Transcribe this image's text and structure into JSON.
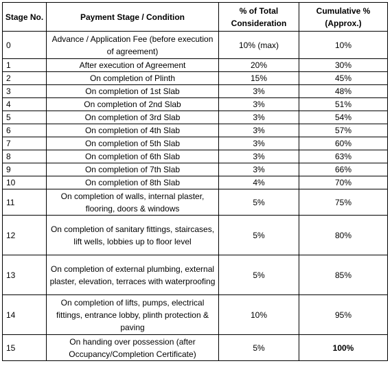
{
  "headers": {
    "stage": "Stage No.",
    "condition": "Payment Stage / Condition",
    "percent": "% of Total Consideration",
    "cumulative": "Cumulative % (Approx.)"
  },
  "rows": [
    {
      "stage": "0",
      "condition": "Advance / Application Fee (before execution of agreement)",
      "percent": "10% (max)",
      "cumulative": "10%"
    },
    {
      "stage": "1",
      "condition": "After execution of Agreement",
      "percent": "20%",
      "cumulative": "30%"
    },
    {
      "stage": "2",
      "condition": "On completion of Plinth",
      "percent": "15%",
      "cumulative": "45%"
    },
    {
      "stage": "3",
      "condition": "On completion of 1st Slab",
      "percent": "3%",
      "cumulative": "48%"
    },
    {
      "stage": "4",
      "condition": "On completion of 2nd Slab",
      "percent": "3%",
      "cumulative": "51%"
    },
    {
      "stage": "5",
      "condition": "On completion of 3rd Slab",
      "percent": "3%",
      "cumulative": "54%"
    },
    {
      "stage": "6",
      "condition": "On completion of 4th Slab",
      "percent": "3%",
      "cumulative": "57%"
    },
    {
      "stage": "7",
      "condition": "On completion of 5th Slab",
      "percent": "3%",
      "cumulative": "60%"
    },
    {
      "stage": "8",
      "condition": "On completion of 6th Slab",
      "percent": "3%",
      "cumulative": "63%"
    },
    {
      "stage": "9",
      "condition": "On completion of 7th Slab",
      "percent": "3%",
      "cumulative": "66%"
    },
    {
      "stage": "10",
      "condition": "On completion of 8th Slab",
      "percent": "4%",
      "cumulative": "70%"
    },
    {
      "stage": "11",
      "condition": "On completion of walls, internal plaster, flooring, doors & windows",
      "percent": "5%",
      "cumulative": "75%"
    },
    {
      "stage": "12",
      "condition": "On completion of sanitary fittings, staircases, lift wells, lobbies up to floor level",
      "percent": "5%",
      "cumulative": "80%"
    },
    {
      "stage": "13",
      "condition": "On completion of external plumbing, external plaster, elevation, terraces with waterproofing",
      "percent": "5%",
      "cumulative": "85%"
    },
    {
      "stage": "14",
      "condition": "On completion of lifts, pumps, electrical fittings, entrance lobby, plinth protection & paving",
      "percent": "10%",
      "cumulative": "95%"
    },
    {
      "stage": "15",
      "condition": "On handing over possession (after Occupancy/Completion Certificate)",
      "percent": "5%",
      "cumulative": "100%"
    }
  ]
}
